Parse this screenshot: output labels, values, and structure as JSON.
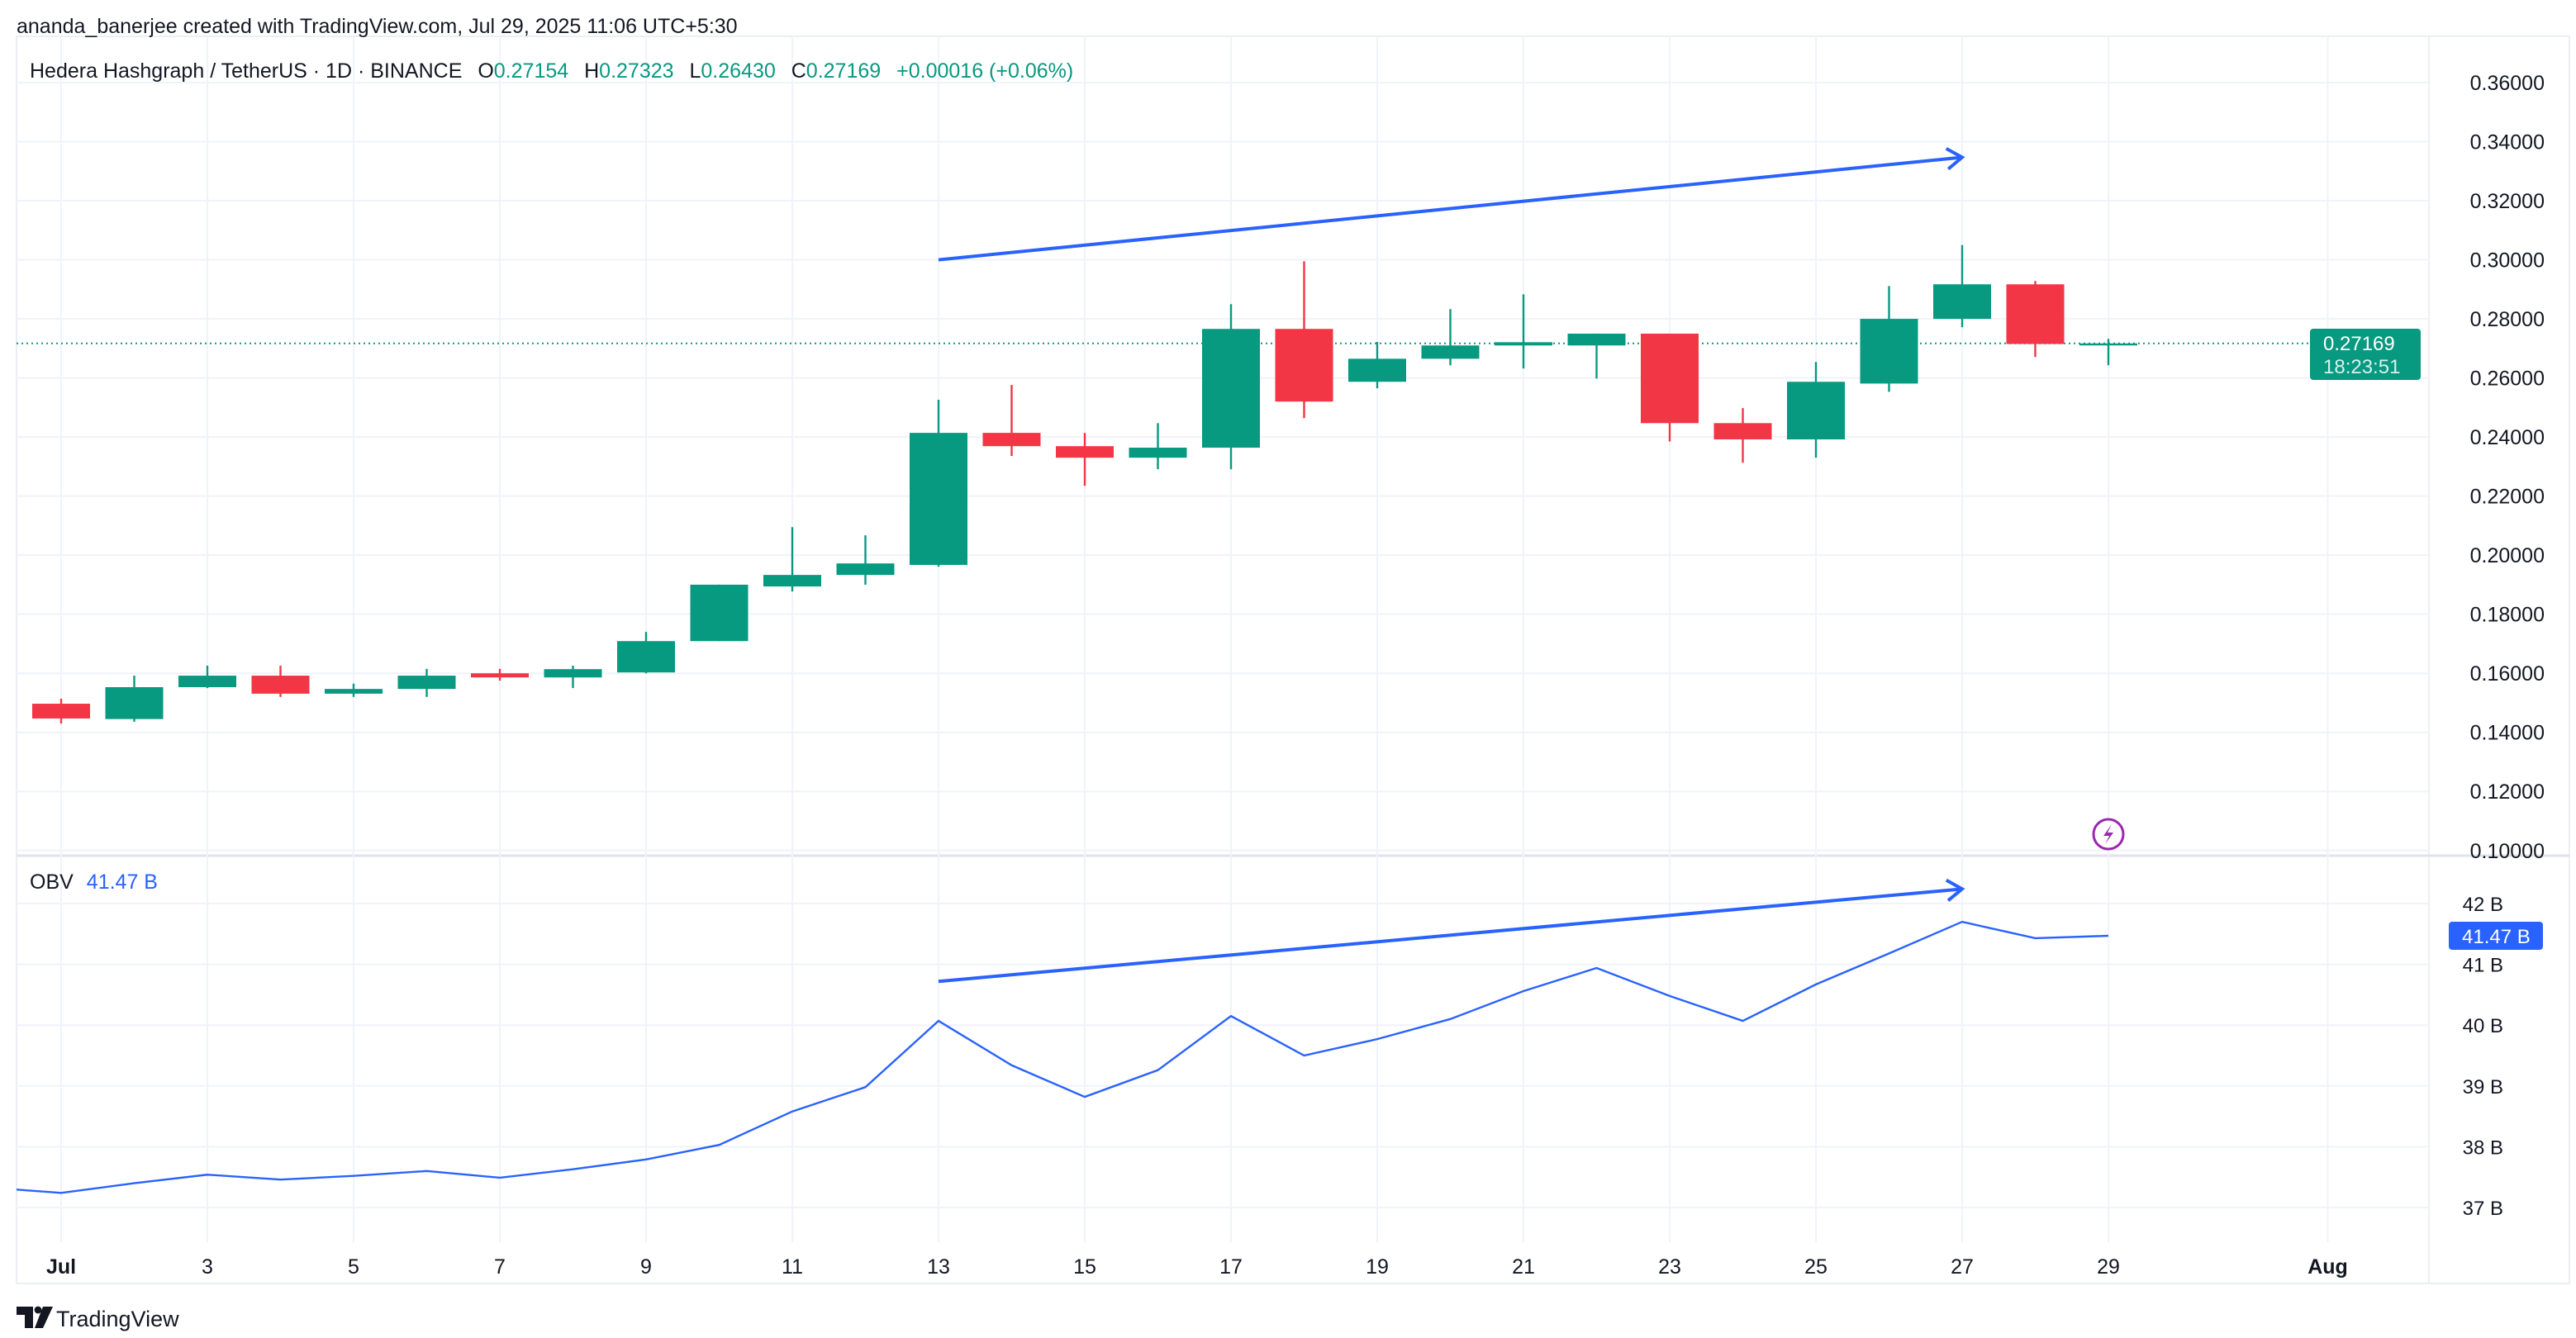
{
  "attribution": "ananda_banerjee created with TradingView.com, Jul 29, 2025 11:06 UTC+5:30",
  "legend": {
    "symbol": "Hedera Hashgraph / TetherUS · 1D · BINANCE",
    "o_label": "O",
    "o": "0.27154",
    "h_label": "H",
    "h": "0.27323",
    "l_label": "L",
    "l": "0.26430",
    "c_label": "C",
    "c": "0.27169",
    "change": "+0.00016 (+0.06%)"
  },
  "price_badge": {
    "value": "0.27169",
    "countdown": "18:23:51"
  },
  "obv_legend": {
    "label": "OBV",
    "value": "41.47 B"
  },
  "obv_badge": "41.47 B",
  "logo": "TradingView",
  "colors": {
    "up": "#089981",
    "down": "#f23645",
    "obv": "#2962ff",
    "trend": "#2962ff",
    "grid": "#f0f3fa",
    "alert": "#9c27b0"
  },
  "icons": {
    "alert": "lightning-bolt-icon",
    "logo": "tradingview-logo-icon"
  },
  "chart_data": [
    {
      "type": "candlestick",
      "ylim": [
        0.1,
        0.36
      ],
      "y_ticks": [
        "0.36000",
        "0.34000",
        "0.32000",
        "0.30000",
        "0.28000",
        "0.26000",
        "0.24000",
        "0.22000",
        "0.20000",
        "0.18000",
        "0.16000",
        "0.14000",
        "0.12000",
        "0.10000"
      ],
      "x_ticks": [
        "Jul",
        "3",
        "5",
        "7",
        "9",
        "11",
        "13",
        "15",
        "17",
        "19",
        "21",
        "23",
        "25",
        "27",
        "29",
        "Aug"
      ],
      "last_price_line": 0.27169,
      "candles": [
        {
          "d": 1,
          "o": 0.1497,
          "h": 0.1514,
          "l": 0.143,
          "c": 0.1447
        },
        {
          "d": 2,
          "o": 0.1445,
          "h": 0.1592,
          "l": 0.1436,
          "c": 0.1553
        },
        {
          "d": 3,
          "o": 0.1553,
          "h": 0.1626,
          "l": 0.155,
          "c": 0.1592
        },
        {
          "d": 4,
          "o": 0.1592,
          "h": 0.1626,
          "l": 0.152,
          "c": 0.1531
        },
        {
          "d": 5,
          "o": 0.1531,
          "h": 0.1565,
          "l": 0.152,
          "c": 0.1547
        },
        {
          "d": 6,
          "o": 0.1547,
          "h": 0.1615,
          "l": 0.152,
          "c": 0.1592
        },
        {
          "d": 7,
          "o": 0.16,
          "h": 0.1615,
          "l": 0.1575,
          "c": 0.1586
        },
        {
          "d": 8,
          "o": 0.1586,
          "h": 0.1626,
          "l": 0.155,
          "c": 0.1614
        },
        {
          "d": 9,
          "o": 0.1603,
          "h": 0.174,
          "l": 0.16,
          "c": 0.1709
        },
        {
          "d": 10,
          "o": 0.1709,
          "h": 0.19,
          "l": 0.1709,
          "c": 0.19
        },
        {
          "d": 11,
          "o": 0.1894,
          "h": 0.2095,
          "l": 0.1877,
          "c": 0.1933
        },
        {
          "d": 12,
          "o": 0.1933,
          "h": 0.2067,
          "l": 0.19,
          "c": 0.1972
        },
        {
          "d": 13,
          "o": 0.1967,
          "h": 0.2526,
          "l": 0.1961,
          "c": 0.2414
        },
        {
          "d": 14,
          "o": 0.2414,
          "h": 0.2576,
          "l": 0.2336,
          "c": 0.2369
        },
        {
          "d": 15,
          "o": 0.2369,
          "h": 0.2414,
          "l": 0.2235,
          "c": 0.233
        },
        {
          "d": 16,
          "o": 0.233,
          "h": 0.2447,
          "l": 0.2291,
          "c": 0.2364
        },
        {
          "d": 17,
          "o": 0.2364,
          "h": 0.285,
          "l": 0.2291,
          "c": 0.2766
        },
        {
          "d": 18,
          "o": 0.2766,
          "h": 0.2995,
          "l": 0.2464,
          "c": 0.252
        },
        {
          "d": 19,
          "o": 0.2587,
          "h": 0.2722,
          "l": 0.2565,
          "c": 0.2665
        },
        {
          "d": 20,
          "o": 0.2665,
          "h": 0.2833,
          "l": 0.2643,
          "c": 0.271
        },
        {
          "d": 21,
          "o": 0.271,
          "h": 0.2883,
          "l": 0.2632,
          "c": 0.2721
        },
        {
          "d": 22,
          "o": 0.271,
          "h": 0.275,
          "l": 0.2598,
          "c": 0.275
        },
        {
          "d": 23,
          "o": 0.275,
          "h": 0.275,
          "l": 0.2385,
          "c": 0.2447
        },
        {
          "d": 24,
          "o": 0.2447,
          "h": 0.2498,
          "l": 0.2313,
          "c": 0.2392
        },
        {
          "d": 25,
          "o": 0.2392,
          "h": 0.2654,
          "l": 0.233,
          "c": 0.2587
        },
        {
          "d": 26,
          "o": 0.2581,
          "h": 0.2911,
          "l": 0.2553,
          "c": 0.28
        },
        {
          "d": 27,
          "o": 0.28,
          "h": 0.305,
          "l": 0.2772,
          "c": 0.2917
        },
        {
          "d": 28,
          "o": 0.2917,
          "h": 0.2928,
          "l": 0.2671,
          "c": 0.2715
        },
        {
          "d": 29,
          "o": 0.27154,
          "h": 0.27323,
          "l": 0.2643,
          "c": 0.27169
        }
      ],
      "trendline": {
        "from": {
          "d": 13,
          "y": 0.3
        },
        "to": {
          "d": 27,
          "y": 0.3347
        }
      }
    },
    {
      "type": "line",
      "name": "OBV",
      "ylim": [
        36.4,
        42.6
      ],
      "y_ticks": [
        "42 B",
        "41 B",
        "40 B",
        "39 B",
        "38 B",
        "37 B"
      ],
      "points": [
        {
          "d": 0,
          "v": 37.33
        },
        {
          "d": 1,
          "v": 37.24
        },
        {
          "d": 2,
          "v": 37.4
        },
        {
          "d": 3,
          "v": 37.54
        },
        {
          "d": 4,
          "v": 37.46
        },
        {
          "d": 5,
          "v": 37.52
        },
        {
          "d": 6,
          "v": 37.6
        },
        {
          "d": 7,
          "v": 37.49
        },
        {
          "d": 8,
          "v": 37.63
        },
        {
          "d": 9,
          "v": 37.79
        },
        {
          "d": 10,
          "v": 38.03
        },
        {
          "d": 11,
          "v": 38.58
        },
        {
          "d": 12,
          "v": 38.98
        },
        {
          "d": 13,
          "v": 40.07
        },
        {
          "d": 14,
          "v": 39.34
        },
        {
          "d": 15,
          "v": 38.82
        },
        {
          "d": 16,
          "v": 39.26
        },
        {
          "d": 17,
          "v": 40.15
        },
        {
          "d": 18,
          "v": 39.5
        },
        {
          "d": 19,
          "v": 39.77
        },
        {
          "d": 20,
          "v": 40.1
        },
        {
          "d": 21,
          "v": 40.56
        },
        {
          "d": 22,
          "v": 40.94
        },
        {
          "d": 23,
          "v": 40.48
        },
        {
          "d": 24,
          "v": 40.07
        },
        {
          "d": 25,
          "v": 40.67
        },
        {
          "d": 26,
          "v": 41.18
        },
        {
          "d": 27,
          "v": 41.7
        },
        {
          "d": 28,
          "v": 41.43
        },
        {
          "d": 29,
          "v": 41.47
        }
      ],
      "trendline": {
        "from": {
          "d": 13,
          "y": 40.72
        },
        "to": {
          "d": 27,
          "y": 42.24
        }
      }
    }
  ]
}
